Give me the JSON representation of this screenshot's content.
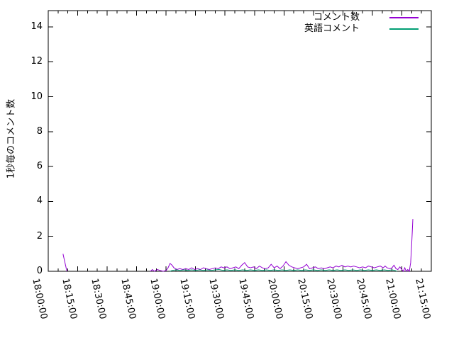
{
  "figure": {
    "background": "#ffffff",
    "axis_color": "#000000",
    "text_color": "#000000"
  },
  "chart_data": {
    "type": "line",
    "title": "",
    "xlabel": "",
    "ylabel": "1秒毎のコメント数",
    "grid": false,
    "legend_position": "top-right-inside",
    "x_tick_labels": [
      "18:00:00",
      "18:15:00",
      "18:30:00",
      "18:45:00",
      "19:00:00",
      "19:15:00",
      "19:30:00",
      "19:45:00",
      "20:00:00",
      "20:15:00",
      "20:30:00",
      "20:45:00",
      "21:00:00",
      "21:15:00"
    ],
    "x_major_tick_minutes": 15,
    "x_minor_tick_minutes": 5,
    "x_range_minutes": [
      0,
      195
    ],
    "x_start_time": "18:00:00",
    "x_end_time": "21:15:00",
    "yticks": [
      0,
      2,
      4,
      6,
      8,
      10,
      12,
      14
    ],
    "ylim": [
      0,
      14.93
    ],
    "series": [
      {
        "name": "コメント数",
        "color": "#9400d3",
        "segments": [
          [
            [
              7.5,
              1.0
            ],
            [
              9.5,
              0
            ]
          ],
          [
            [
              52,
              0
            ],
            [
              53,
              0.1
            ],
            [
              54,
              0
            ],
            [
              55.5,
              0.1
            ],
            [
              57,
              0.05
            ],
            [
              58.5,
              0
            ],
            [
              60,
              0.05
            ],
            [
              61,
              0.2
            ],
            [
              62,
              0.45
            ],
            [
              63,
              0.35
            ],
            [
              64,
              0.2
            ],
            [
              65.5,
              0.1
            ],
            [
              67,
              0.15
            ],
            [
              68.5,
              0.1
            ],
            [
              70,
              0.15
            ],
            [
              71.5,
              0.1
            ],
            [
              73,
              0.2
            ],
            [
              74.5,
              0.1
            ],
            [
              76,
              0.15
            ],
            [
              77.5,
              0.1
            ],
            [
              79,
              0.2
            ],
            [
              80.5,
              0.15
            ],
            [
              82,
              0.1
            ],
            [
              83.5,
              0.15
            ],
            [
              85,
              0.2
            ],
            [
              86.5,
              0.15
            ],
            [
              88,
              0.25
            ],
            [
              89.5,
              0.2
            ],
            [
              91,
              0.25
            ],
            [
              92.5,
              0.15
            ],
            [
              94,
              0.2
            ],
            [
              95.5,
              0.25
            ],
            [
              97,
              0.15
            ],
            [
              98.5,
              0.35
            ],
            [
              100,
              0.5
            ],
            [
              101.5,
              0.25
            ],
            [
              103,
              0.2
            ],
            [
              104.5,
              0.25
            ],
            [
              106,
              0.15
            ],
            [
              107.5,
              0.3
            ],
            [
              109,
              0.2
            ],
            [
              110.5,
              0.15
            ],
            [
              112,
              0.2
            ],
            [
              113.5,
              0.4
            ],
            [
              115,
              0.2
            ],
            [
              116.5,
              0.3
            ],
            [
              118,
              0.15
            ],
            [
              119.5,
              0.3
            ],
            [
              121,
              0.55
            ],
            [
              122.5,
              0.35
            ],
            [
              124,
              0.25
            ],
            [
              125.5,
              0.2
            ],
            [
              127,
              0.15
            ],
            [
              128.5,
              0.2
            ],
            [
              130,
              0.25
            ],
            [
              131.5,
              0.4
            ],
            [
              133,
              0.15
            ],
            [
              134.5,
              0.2
            ],
            [
              136,
              0.25
            ],
            [
              137.5,
              0.15
            ],
            [
              139,
              0.2
            ],
            [
              140.5,
              0.15
            ],
            [
              142,
              0.2
            ],
            [
              143.5,
              0.25
            ],
            [
              145,
              0.2
            ],
            [
              146.5,
              0.3
            ],
            [
              148,
              0.25
            ],
            [
              149.5,
              0.35
            ],
            [
              151,
              0.25
            ],
            [
              152.5,
              0.3
            ],
            [
              154,
              0.25
            ],
            [
              155.5,
              0.3
            ],
            [
              157,
              0.25
            ],
            [
              158.5,
              0.2
            ],
            [
              160,
              0.25
            ],
            [
              161.5,
              0.2
            ],
            [
              163,
              0.3
            ],
            [
              164.5,
              0.25
            ],
            [
              166,
              0.2
            ],
            [
              167.5,
              0.25
            ],
            [
              169,
              0.3
            ],
            [
              170.5,
              0.2
            ],
            [
              171.5,
              0.3
            ],
            [
              172.5,
              0.2
            ],
            [
              174,
              0.15
            ],
            [
              175,
              0.2
            ],
            [
              176,
              0.35
            ],
            [
              177,
              0.15
            ],
            [
              178,
              0.1
            ],
            [
              179,
              0.25
            ],
            [
              180,
              0.1
            ],
            [
              180.8,
              0
            ],
            [
              181.5,
              0.2
            ],
            [
              182.3,
              0
            ],
            [
              183,
              0.1
            ],
            [
              183.8,
              0
            ],
            [
              184.5,
              0.5
            ],
            [
              185,
              1.5
            ],
            [
              185.6,
              3.0
            ]
          ]
        ]
      },
      {
        "name": "英語コメント",
        "color": "#009e73",
        "segments": [
          [
            [
              62,
              0
            ],
            [
              63,
              0.05
            ],
            [
              65,
              0.08
            ],
            [
              67,
              0.05
            ],
            [
              69,
              0.08
            ],
            [
              71,
              0.05
            ],
            [
              73,
              0.08
            ],
            [
              75,
              0.05
            ],
            [
              77,
              0.08
            ],
            [
              79,
              0.05
            ],
            [
              81,
              0.08
            ],
            [
              83,
              0.05
            ],
            [
              85,
              0.08
            ],
            [
              87,
              0.1
            ],
            [
              89,
              0.05
            ],
            [
              91,
              0.08
            ],
            [
              93,
              0.05
            ],
            [
              95,
              0.08
            ],
            [
              97,
              0.05
            ],
            [
              99,
              0.08
            ],
            [
              101,
              0.05
            ],
            [
              103,
              0.08
            ],
            [
              105,
              0.05
            ],
            [
              107,
              0.08
            ],
            [
              109,
              0.05
            ],
            [
              111,
              0.08
            ],
            [
              113,
              0.05
            ],
            [
              115,
              0.08
            ],
            [
              117,
              0.05
            ],
            [
              119,
              0.08
            ],
            [
              121,
              0.05
            ],
            [
              123,
              0.08
            ],
            [
              125,
              0.05
            ],
            [
              127,
              0.08
            ],
            [
              129,
              0.05
            ],
            [
              131,
              0.08
            ],
            [
              133,
              0.05
            ],
            [
              135,
              0.08
            ],
            [
              137,
              0.05
            ],
            [
              139,
              0.08
            ],
            [
              141,
              0.05
            ],
            [
              143,
              0.08
            ],
            [
              145,
              0.05
            ],
            [
              147,
              0.08
            ],
            [
              149,
              0.05
            ],
            [
              151,
              0.08
            ],
            [
              153,
              0.05
            ],
            [
              155,
              0.08
            ],
            [
              157,
              0.05
            ],
            [
              159,
              0.08
            ],
            [
              161,
              0.05
            ],
            [
              163,
              0.08
            ],
            [
              165,
              0.05
            ],
            [
              167,
              0.08
            ],
            [
              169,
              0.05
            ],
            [
              171,
              0.08
            ],
            [
              173,
              0.05
            ],
            [
              175,
              0.08
            ],
            [
              176.5,
              0.05
            ],
            [
              177.5,
              0
            ]
          ]
        ]
      }
    ]
  }
}
